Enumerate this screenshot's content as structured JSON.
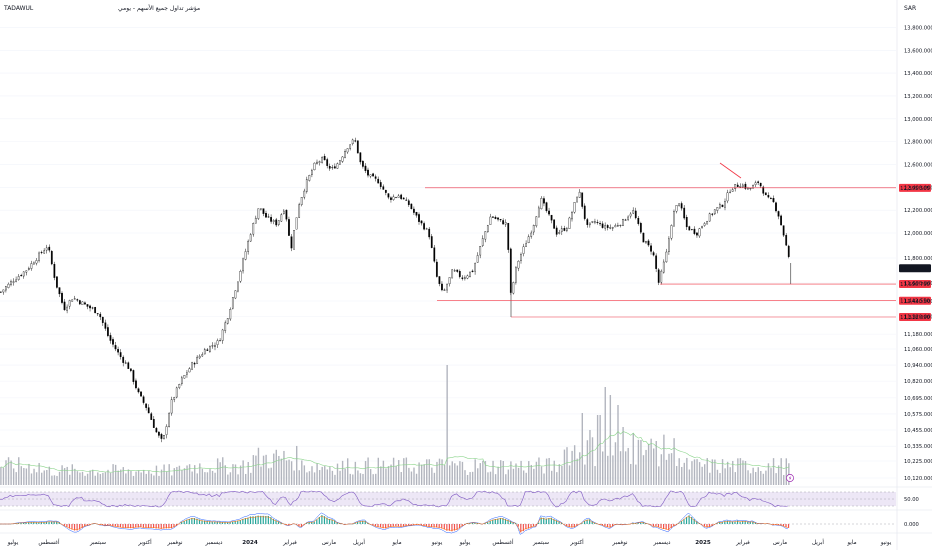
{
  "header": {
    "symbol": "TADAWUL",
    "title": "مؤشر تداول جميع الأسهم - يومي",
    "currency": "SAR"
  },
  "colors": {
    "candle": "#000000",
    "level_line": "#f23645",
    "label_bg": "#f23645",
    "current_bg": "#131722",
    "volume": "#b2b5be",
    "volume_ma": "#8bd48b",
    "rsi_line": "#7e57c2",
    "rsi_band": "#ede7f6",
    "macd_up": "#26a69a",
    "macd_down": "#ef5350",
    "macd_line": "#2962ff",
    "signal_line": "#ff6d00",
    "lightning_icon": "#9c27b0"
  },
  "price_axis": {
    "ticks": [
      "13,800.000",
      "13,600.000",
      "13,400.000",
      "13,200.000",
      "13,000.000",
      "12,800.000",
      "12,600.000",
      "12,400.000",
      "12,200.000",
      "12,000.000",
      "11,800.000",
      "11,600.000",
      "11,440.000",
      "11,320.000",
      "11,180.000",
      "11,060.000",
      "10,940.000",
      "10,820.000",
      "10,695.000",
      "10,575.000",
      "10,455.000",
      "10,335.000",
      "10,225.000",
      "10,120.000"
    ]
  },
  "levels": [
    {
      "value": "12,395.505",
      "kind": "resistance"
    },
    {
      "value": "11,590.790",
      "kind": "support"
    },
    {
      "value": "11,442.550",
      "kind": "support"
    },
    {
      "value": "11,318.090",
      "kind": "support"
    }
  ],
  "current_price": "11,717.960",
  "rsi_axis_label": "50.00",
  "macd_axis_label": "0.000",
  "x_axis": {
    "labels": [
      "يوليو",
      "أغسطس",
      "سبتمبر",
      "أكتوبر",
      "نوفمبر",
      "ديسمبر",
      "2024",
      "فبراير",
      "مارس",
      "أبريل",
      "مايو",
      "يونيو",
      "يوليو",
      "أغسطس",
      "سبتمبر",
      "أكتوبر",
      "نوفمبر",
      "ديسمبر",
      "2025",
      "فبراير",
      "مارس",
      "أبريل",
      "مايو",
      "يونيو"
    ],
    "bold": [
      "2024",
      "2025"
    ]
  },
  "chart_data": {
    "type": "candlestick",
    "title": "مؤشر تداول جميع الأسهم - يومي",
    "symbol": "TADAWUL",
    "currency": "SAR",
    "x_range": [
      "2023-07",
      "2025-06"
    ],
    "y_range": [
      10120,
      13900
    ],
    "series": [
      {
        "name": "close",
        "values": [
          {
            "x": "2023-07-01",
            "y": 11550
          },
          {
            "x": "2023-07-15",
            "y": 11620
          },
          {
            "x": "2023-08-01",
            "y": 11780
          },
          {
            "x": "2023-08-10",
            "y": 11850
          },
          {
            "x": "2023-08-20",
            "y": 11500
          },
          {
            "x": "2023-09-01",
            "y": 11320
          },
          {
            "x": "2023-09-15",
            "y": 11120
          },
          {
            "x": "2023-10-01",
            "y": 10850
          },
          {
            "x": "2023-10-15",
            "y": 10620
          },
          {
            "x": "2023-10-25",
            "y": 10380
          },
          {
            "x": "2023-11-05",
            "y": 10800
          },
          {
            "x": "2023-11-20",
            "y": 10950
          },
          {
            "x": "2023-12-05",
            "y": 11050
          },
          {
            "x": "2023-12-20",
            "y": 11120
          },
          {
            "x": "2024-01-05",
            "y": 11600
          },
          {
            "x": "2024-01-20",
            "y": 12100
          },
          {
            "x": "2024-02-01",
            "y": 12250
          },
          {
            "x": "2024-02-15",
            "y": 12400
          },
          {
            "x": "2024-03-01",
            "y": 12650
          },
          {
            "x": "2024-03-20",
            "y": 12780
          },
          {
            "x": "2024-04-05",
            "y": 12500
          },
          {
            "x": "2024-04-20",
            "y": 12450
          },
          {
            "x": "2024-05-05",
            "y": 12150
          },
          {
            "x": "2024-05-20",
            "y": 11800
          },
          {
            "x": "2024-06-05",
            "y": 11600
          },
          {
            "x": "2024-06-20",
            "y": 11700
          },
          {
            "x": "2024-07-05",
            "y": 11800
          },
          {
            "x": "2024-07-20",
            "y": 12150
          },
          {
            "x": "2024-08-05",
            "y": 11620
          },
          {
            "x": "2024-08-20",
            "y": 11950
          },
          {
            "x": "2024-09-05",
            "y": 12200
          },
          {
            "x": "2024-09-20",
            "y": 12050
          },
          {
            "x": "2024-10-05",
            "y": 12350
          },
          {
            "x": "2024-10-20",
            "y": 12050
          },
          {
            "x": "2024-11-05",
            "y": 12100
          },
          {
            "x": "2024-11-20",
            "y": 12150
          },
          {
            "x": "2024-12-05",
            "y": 11850
          },
          {
            "x": "2024-12-20",
            "y": 12000
          },
          {
            "x": "2025-01-05",
            "y": 12150
          },
          {
            "x": "2025-01-20",
            "y": 12200
          },
          {
            "x": "2025-02-05",
            "y": 12450
          },
          {
            "x": "2025-02-20",
            "y": 12380
          },
          {
            "x": "2025-03-05",
            "y": 12050
          },
          {
            "x": "2025-03-15",
            "y": 11718
          }
        ]
      }
    ],
    "levels": [
      12395.505,
      11590.79,
      11442.55,
      11318.09
    ],
    "last_price": 11717.96,
    "panes": [
      "price",
      "volume",
      "rsi",
      "macd"
    ]
  }
}
